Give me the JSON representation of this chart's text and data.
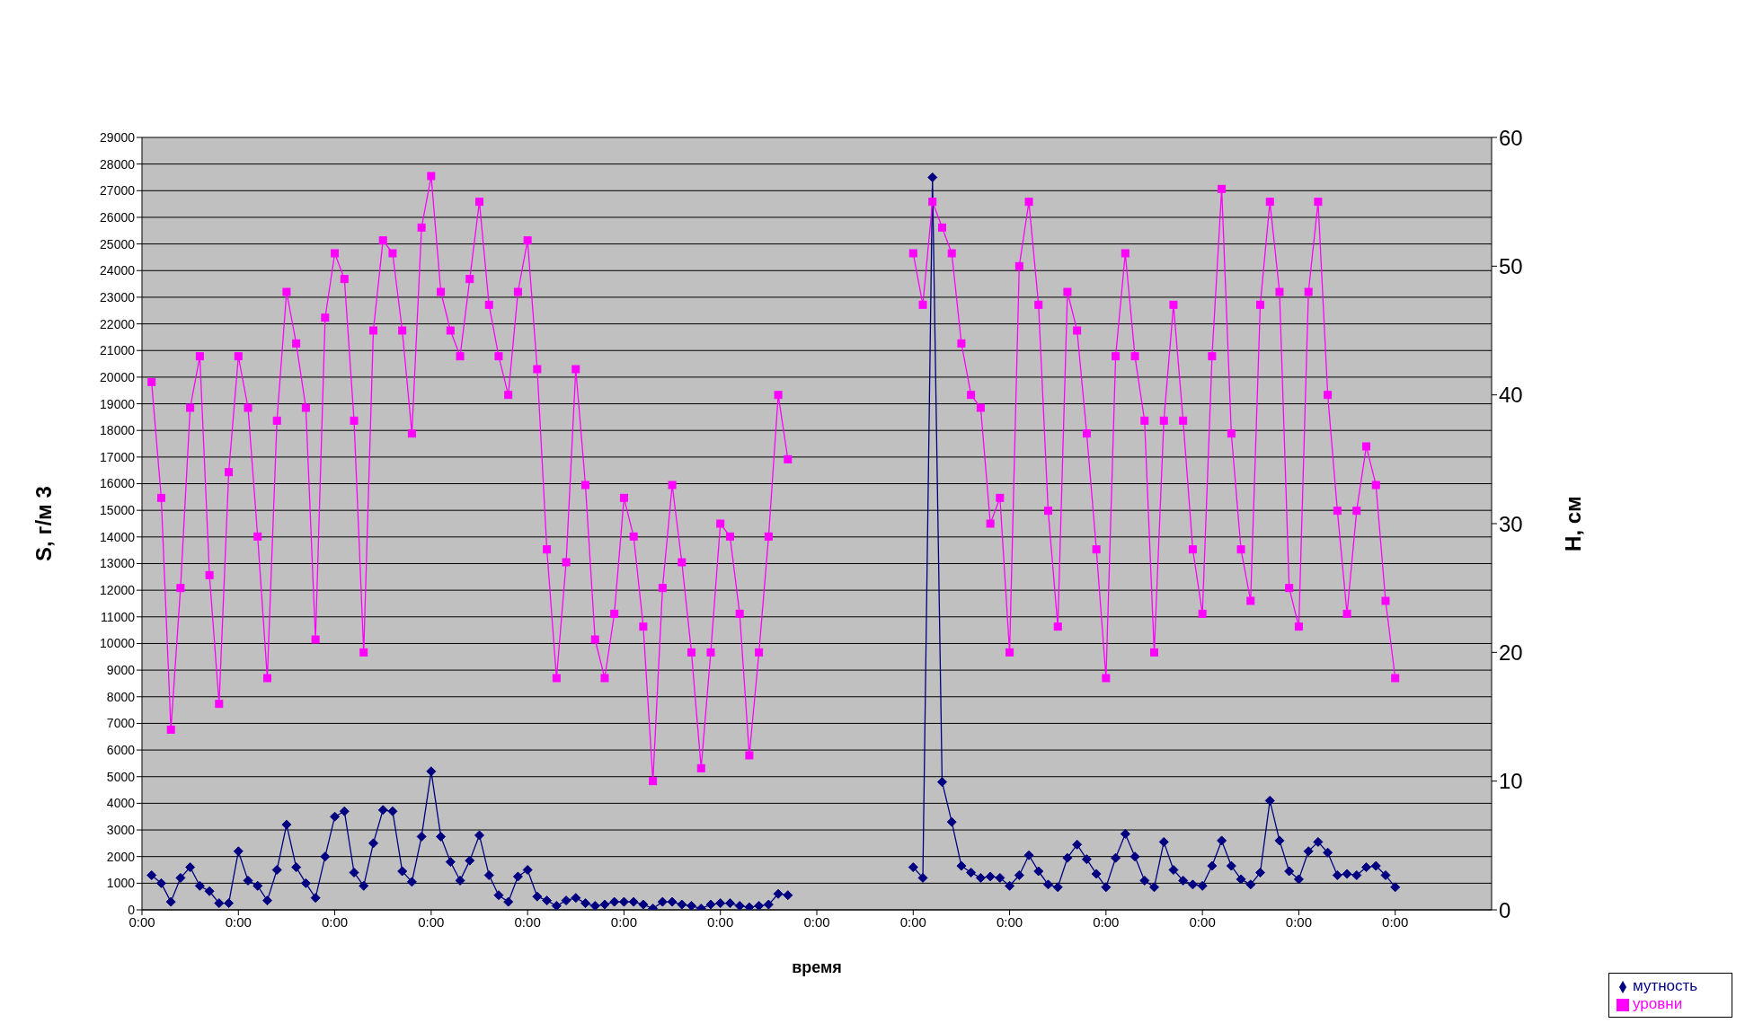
{
  "chart_data": {
    "type": "line",
    "xlabel": "время",
    "ylabel": "S, г/м 3",
    "y2label": "Н, см",
    "categories": [
      "0:00",
      null,
      null,
      null,
      null,
      null,
      null,
      null,
      null,
      null,
      "0:00",
      null,
      null,
      null,
      null,
      null,
      null,
      null,
      null,
      null,
      "0:00",
      null,
      null,
      null,
      null,
      null,
      null,
      null,
      null,
      null,
      "0:00",
      null,
      null,
      null,
      null,
      null,
      null,
      null,
      null,
      null,
      "0:00",
      null,
      null,
      null,
      null,
      null,
      null,
      null,
      null,
      null,
      "0:00",
      null,
      null,
      null,
      null,
      null,
      null,
      null,
      null,
      null,
      "0:00",
      null,
      null,
      null,
      null,
      null,
      null,
      null,
      null,
      null,
      "0:00",
      null,
      null,
      null,
      null,
      null,
      null,
      null,
      null,
      null,
      "0:00",
      null,
      null,
      null,
      null,
      null,
      null,
      null,
      null,
      null,
      "0:00",
      null,
      null,
      null,
      null,
      null,
      null,
      null,
      null,
      null,
      "0:00",
      null,
      null,
      null,
      null,
      null,
      null,
      null,
      null,
      null,
      "0:00",
      null,
      null,
      null,
      null,
      null,
      null,
      null,
      null,
      null,
      "0:00",
      null,
      null,
      null,
      null,
      null,
      null,
      null,
      null,
      null,
      "0:00",
      null,
      null,
      null,
      null,
      null,
      null,
      null,
      null,
      null
    ],
    "ylim": [
      0,
      29000
    ],
    "yticks": [
      0,
      1000,
      2000,
      3000,
      4000,
      5000,
      6000,
      7000,
      8000,
      9000,
      10000,
      11000,
      12000,
      13000,
      14000,
      15000,
      16000,
      17000,
      18000,
      19000,
      20000,
      21000,
      22000,
      23000,
      24000,
      25000,
      26000,
      27000,
      28000,
      29000
    ],
    "y2lim": [
      0,
      60
    ],
    "y2ticks": [
      0,
      10,
      20,
      30,
      40,
      50,
      60
    ],
    "grid": "y",
    "legend": "bottom right",
    "series": [
      {
        "name": "мутность",
        "color": "#000080",
        "marker": "diamond",
        "values": [
          null,
          1300,
          1000,
          300,
          1200,
          1600,
          900,
          700,
          250,
          250,
          2200,
          1100,
          900,
          350,
          1500,
          3200,
          1600,
          1000,
          450,
          2000,
          3500,
          3700,
          1400,
          900,
          2500,
          3750,
          3700,
          1450,
          1050,
          2750,
          5200,
          2750,
          1800,
          1100,
          1850,
          2800,
          1300,
          550,
          300,
          1250,
          1500,
          500,
          350,
          150,
          350,
          450,
          250,
          150,
          200,
          300,
          300,
          300,
          200,
          50,
          300,
          300,
          200,
          150,
          50,
          200,
          250,
          250,
          150,
          100,
          150,
          200,
          600,
          550,
          null,
          null,
          null,
          null,
          null,
          null,
          null,
          null,
          null,
          null,
          null,
          null,
          1600,
          1200,
          27500,
          4800,
          3300,
          1650,
          1400,
          1200,
          1250,
          1200,
          900,
          1300,
          2050,
          1450,
          950,
          850,
          1950,
          2450,
          1900,
          1350,
          850,
          1950,
          2850,
          2000,
          1100,
          850,
          2550,
          1500,
          1100,
          950,
          900,
          1650,
          2600,
          1650,
          1150,
          950,
          1400,
          4100,
          2600,
          1450,
          1150,
          2200,
          2550,
          2150,
          1300,
          1350,
          1300,
          1600,
          1650,
          1300,
          850,
          null,
          null,
          null,
          null,
          null,
          null,
          null,
          null,
          null
        ]
      },
      {
        "name": "уровни",
        "color": "#ff00ff",
        "marker": "square",
        "axis": "y2",
        "values": [
          null,
          41,
          32,
          14,
          25,
          39,
          43,
          26,
          16,
          34,
          43,
          39,
          29,
          18,
          38,
          48,
          44,
          39,
          21,
          46,
          51,
          49,
          38,
          20,
          45,
          52,
          51,
          45,
          37,
          53,
          57,
          48,
          45,
          43,
          49,
          55,
          47,
          43,
          40,
          48,
          52,
          42,
          28,
          18,
          27,
          42,
          33,
          21,
          18,
          23,
          32,
          29,
          22,
          10,
          25,
          33,
          27,
          20,
          11,
          20,
          30,
          29,
          23,
          12,
          20,
          29,
          40,
          35,
          null,
          null,
          null,
          null,
          null,
          null,
          null,
          null,
          null,
          null,
          null,
          null,
          51,
          47,
          55,
          53,
          51,
          44,
          40,
          39,
          30,
          32,
          20,
          50,
          55,
          47,
          31,
          22,
          48,
          45,
          37,
          28,
          18,
          43,
          51,
          43,
          38,
          20,
          38,
          47,
          38,
          28,
          23,
          43,
          56,
          37,
          28,
          24,
          47,
          55,
          48,
          25,
          22,
          48,
          55,
          40,
          31,
          23,
          31,
          36,
          33,
          24,
          18,
          null,
          null,
          null,
          null,
          null,
          null,
          null,
          null,
          null
        ]
      }
    ]
  }
}
